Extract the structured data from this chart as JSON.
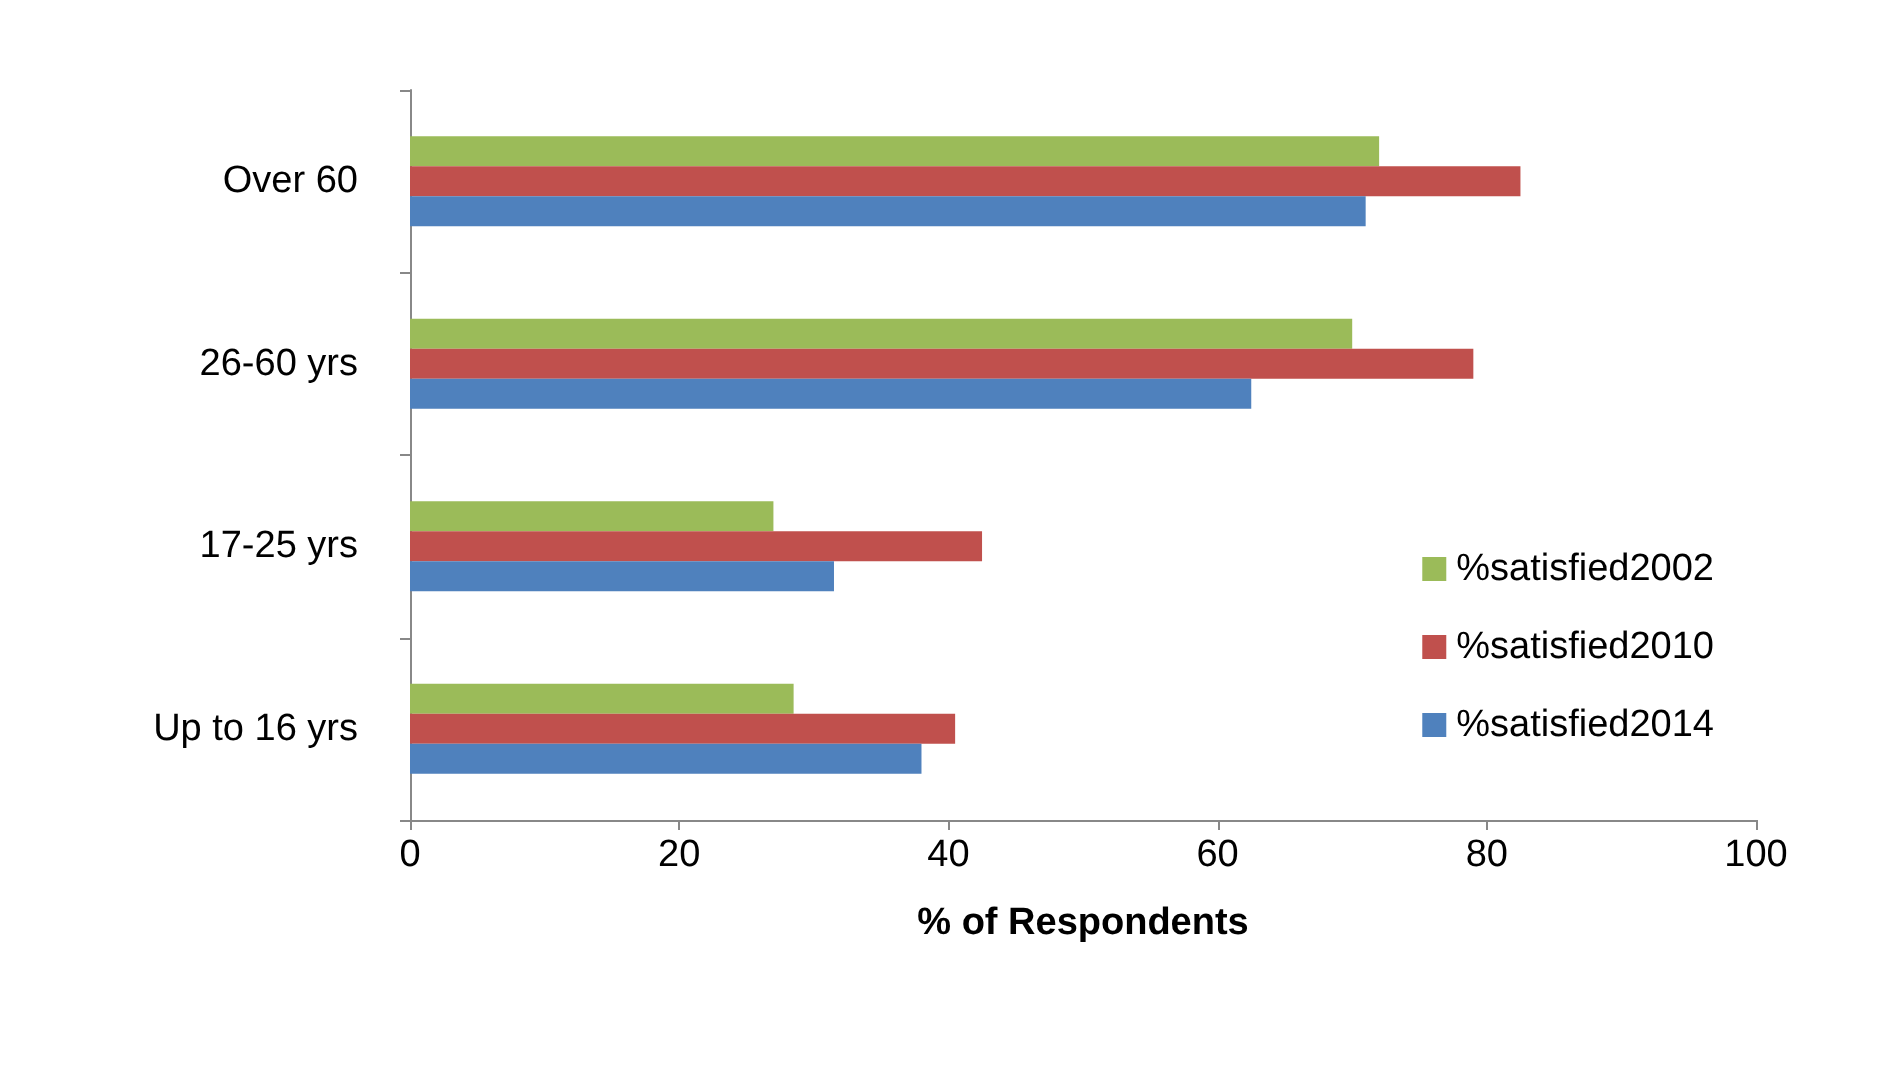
{
  "chart_data": {
    "type": "bar",
    "orientation": "horizontal",
    "xlabel": "% of Respondents",
    "categories": [
      "Over 60",
      "26-60 yrs",
      "17-25 yrs",
      "Up to 16 yrs"
    ],
    "series": [
      {
        "name": "%satisfied2002",
        "color": "#9bbb59",
        "values": [
          72,
          70,
          27,
          28.5
        ]
      },
      {
        "name": "%satisfied2010",
        "color": "#c0504d",
        "values": [
          82.5,
          79,
          42.5,
          40.5
        ]
      },
      {
        "name": "%satisfied2014",
        "color": "#4f81bd",
        "values": [
          71,
          62.5,
          31.5,
          38
        ]
      }
    ],
    "xlim": [
      0,
      100
    ],
    "xticks": [
      0,
      20,
      40,
      60,
      80,
      100
    ],
    "grid": false,
    "legend": "right"
  }
}
